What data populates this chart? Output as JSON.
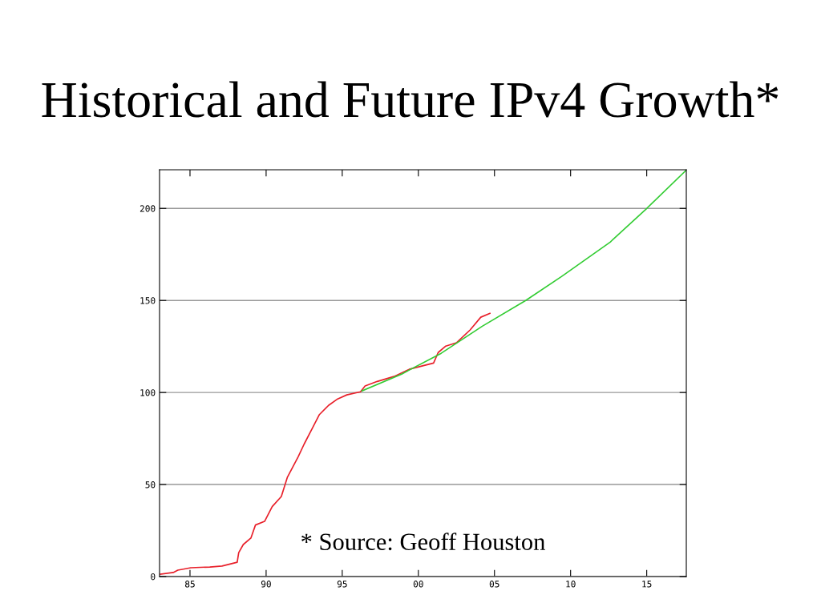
{
  "chart_data": {
    "type": "line",
    "title": "Historical and Future IPv4 Growth*",
    "annotations": [
      "* Source: Geoff Houston"
    ],
    "series": [
      {
        "color": "#e8202a",
        "x": [
          1983.05,
          1983.9,
          1984.2,
          1985.05,
          1986.3,
          1987.1,
          1988.1,
          1988.2,
          1988.5,
          1989.0,
          1989.3,
          1989.9,
          1990.4,
          1991.0,
          1991.4,
          1992.1,
          1992.5,
          1993.0,
          1993.5,
          1994.1,
          1994.7,
          1995.3,
          1996.2,
          1996.5,
          1997.3,
          1998.4,
          1999.4,
          2001.0,
          2001.3,
          2001.8,
          2002.5,
          2003.4,
          2004.1,
          2004.7
        ],
        "values": [
          1.3,
          2.2,
          3.5,
          4.8,
          5.2,
          5.7,
          7.8,
          13,
          17.4,
          20.9,
          28,
          30,
          38,
          43.5,
          54,
          65,
          72,
          80,
          88,
          93,
          96.5,
          98.7,
          100.4,
          103.5,
          106,
          108.7,
          112.6,
          116,
          121.7,
          125.2,
          127,
          134,
          140.9,
          143
        ]
      },
      {
        "color": "#33cc33",
        "x": [
          1996.3,
          1998.9,
          2001.5,
          2004.2,
          2007.05,
          2009.4,
          2012.6,
          2015.0,
          2017.6
        ],
        "values": [
          100.9,
          110,
          121.3,
          136,
          150,
          163,
          181.7,
          200,
          220.8
        ]
      }
    ],
    "xlim": [
      1983,
      2017.6
    ],
    "ylim": [
      0,
      221
    ],
    "xticks": [
      {
        "value": 1985,
        "label": "85"
      },
      {
        "value": 1990,
        "label": "90"
      },
      {
        "value": 1995,
        "label": "95"
      },
      {
        "value": 2000,
        "label": "00"
      },
      {
        "value": 2005,
        "label": "05"
      },
      {
        "value": 2010,
        "label": "10"
      },
      {
        "value": 2015,
        "label": "15"
      }
    ],
    "yticks": [
      0,
      50,
      100,
      150,
      200
    ],
    "grid": "y"
  }
}
